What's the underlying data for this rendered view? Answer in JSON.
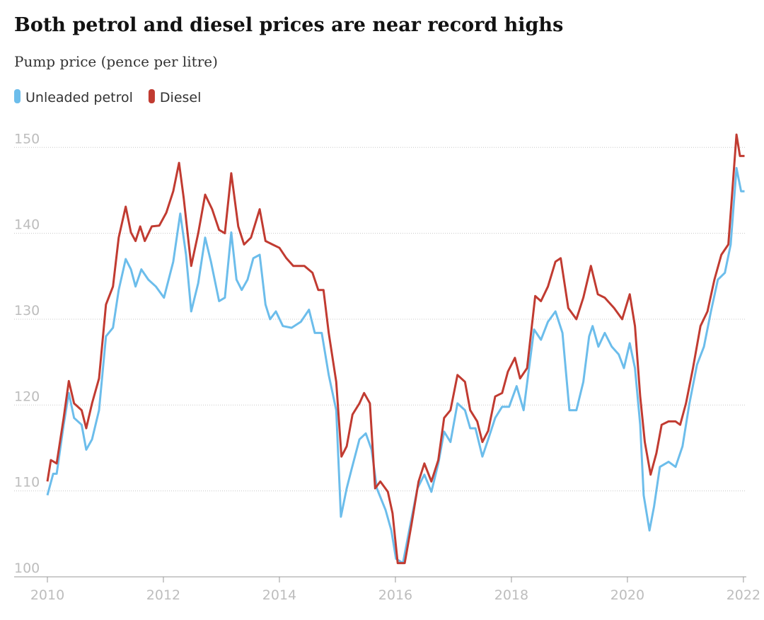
{
  "chart_data": {
    "type": "line",
    "title": "Both petrol and diesel prices are near record highs",
    "subtitle": "Pump price (pence per litre)",
    "xlim": [
      2010,
      2022.05
    ],
    "xticks": [
      2010,
      2012,
      2014,
      2016,
      2018,
      2020,
      2022
    ],
    "ylim": [
      100,
      152
    ],
    "yticks": [
      100,
      110,
      120,
      130,
      140,
      150
    ],
    "grid": true,
    "series": [
      {
        "name": "Unleaded petrol",
        "color": "#6cbdeb",
        "x": [
          2010.0,
          2010.1,
          2010.16,
          2010.28,
          2010.37,
          2010.46,
          2010.59,
          2010.67,
          2010.77,
          2010.89,
          2011.01,
          2011.13,
          2011.23,
          2011.35,
          2011.44,
          2011.52,
          2011.62,
          2011.74,
          2011.87,
          2012.01,
          2012.17,
          2012.29,
          2012.39,
          2012.48,
          2012.6,
          2012.72,
          2012.82,
          2012.96,
          2013.06,
          2013.17,
          2013.26,
          2013.35,
          2013.45,
          2013.55,
          2013.66,
          2013.76,
          2013.84,
          2013.94,
          2014.06,
          2014.21,
          2014.37,
          2014.51,
          2014.61,
          2014.73,
          2014.85,
          2014.98,
          2015.06,
          2015.16,
          2015.24,
          2015.38,
          2015.49,
          2015.59,
          2015.68,
          2015.83,
          2015.93,
          2016.01,
          2016.13,
          2016.26,
          2016.38,
          2016.5,
          2016.62,
          2016.74,
          2016.84,
          2016.95,
          2017.07,
          2017.2,
          2017.29,
          2017.38,
          2017.5,
          2017.6,
          2017.72,
          2017.84,
          2017.96,
          2018.09,
          2018.21,
          2018.39,
          2018.51,
          2018.63,
          2018.76,
          2018.88,
          2019.0,
          2019.12,
          2019.24,
          2019.34,
          2019.4,
          2019.5,
          2019.61,
          2019.73,
          2019.85,
          2019.94,
          2020.04,
          2020.13,
          2020.22,
          2020.28,
          2020.38,
          2020.46,
          2020.56,
          2020.71,
          2020.83,
          2020.95,
          2021.07,
          2021.2,
          2021.32,
          2021.44,
          2021.56,
          2021.68,
          2021.78,
          2021.88,
          2021.96,
          2022.02
        ],
        "values": [
          109.5,
          112,
          112,
          117.7,
          121.4,
          118.5,
          117.7,
          114.8,
          116,
          119.4,
          128,
          129,
          133.4,
          137,
          135.8,
          133.8,
          135.8,
          134.6,
          133.8,
          132.5,
          136.7,
          142.3,
          137.5,
          130.9,
          134.2,
          139.5,
          136.7,
          132.1,
          132.5,
          140.1,
          134.6,
          133.4,
          134.6,
          137.1,
          137.5,
          131.7,
          130,
          130.9,
          129.2,
          129,
          129.7,
          131.1,
          128.4,
          128.4,
          123.5,
          119.4,
          107,
          110.3,
          112.4,
          116,
          116.7,
          114.8,
          110.3,
          107.8,
          105.4,
          102.1,
          101.6,
          106.2,
          110.3,
          111.9,
          109.9,
          113.2,
          116.9,
          115.7,
          120.2,
          119.4,
          117.3,
          117.3,
          114,
          116,
          118.5,
          119.8,
          119.8,
          122.2,
          119.4,
          128.8,
          127.6,
          129.7,
          130.9,
          128.4,
          119.4,
          119.4,
          122.7,
          128,
          129.2,
          126.8,
          128.4,
          126.8,
          125.9,
          124.3,
          127.2,
          124.3,
          117.7,
          109.5,
          105.4,
          108.2,
          112.8,
          113.4,
          112.8,
          115.2,
          120.2,
          124.7,
          126.8,
          130.9,
          134.6,
          135.4,
          138.7,
          147.6,
          144.9,
          144.9
        ]
      },
      {
        "name": "Diesel",
        "color": "#c13b31",
        "x": [
          2010.0,
          2010.06,
          2010.16,
          2010.28,
          2010.37,
          2010.46,
          2010.59,
          2010.67,
          2010.77,
          2010.89,
          2011.01,
          2011.13,
          2011.23,
          2011.35,
          2011.44,
          2011.52,
          2011.6,
          2011.68,
          2011.8,
          2011.93,
          2012.05,
          2012.17,
          2012.27,
          2012.35,
          2012.48,
          2012.6,
          2012.72,
          2012.84,
          2012.96,
          2013.06,
          2013.17,
          2013.29,
          2013.39,
          2013.51,
          2013.66,
          2013.76,
          2013.88,
          2014.0,
          2014.12,
          2014.24,
          2014.43,
          2014.57,
          2014.67,
          2014.76,
          2014.85,
          2014.98,
          2015.07,
          2015.16,
          2015.26,
          2015.38,
          2015.46,
          2015.56,
          2015.65,
          2015.74,
          2015.87,
          2015.95,
          2016.04,
          2016.16,
          2016.28,
          2016.4,
          2016.5,
          2016.62,
          2016.74,
          2016.84,
          2016.95,
          2017.07,
          2017.2,
          2017.29,
          2017.41,
          2017.5,
          2017.6,
          2017.72,
          2017.84,
          2017.94,
          2018.06,
          2018.15,
          2018.27,
          2018.41,
          2018.51,
          2018.63,
          2018.76,
          2018.85,
          2018.98,
          2019.12,
          2019.24,
          2019.37,
          2019.49,
          2019.61,
          2019.77,
          2019.91,
          2020.04,
          2020.13,
          2020.22,
          2020.3,
          2020.4,
          2020.5,
          2020.59,
          2020.71,
          2020.83,
          2020.91,
          2021.01,
          2021.13,
          2021.26,
          2021.38,
          2021.5,
          2021.62,
          2021.74,
          2021.8,
          2021.88,
          2021.94,
          2022.02
        ],
        "values": [
          111.1,
          113.6,
          113.2,
          118.5,
          122.8,
          120.2,
          119.4,
          117.3,
          120.2,
          123.1,
          131.7,
          133.8,
          139.5,
          143.1,
          140.1,
          139.1,
          140.8,
          139.1,
          140.8,
          140.9,
          142.4,
          144.9,
          148.2,
          144.1,
          136.2,
          140,
          144.5,
          142.8,
          140.4,
          140,
          147,
          140.8,
          138.7,
          139.5,
          142.8,
          139.1,
          138.7,
          138.3,
          137.1,
          136.2,
          136.2,
          135.4,
          133.4,
          133.4,
          128.4,
          122.7,
          114,
          115.2,
          118.9,
          120.2,
          121.4,
          120.2,
          110.3,
          111.1,
          109.9,
          107.4,
          101.6,
          101.6,
          106.2,
          111.1,
          113.2,
          111.1,
          113.6,
          118.5,
          119.4,
          123.5,
          122.7,
          119.4,
          118.1,
          115.7,
          117,
          121,
          121.4,
          123.9,
          125.5,
          123.1,
          124.3,
          132.7,
          132.1,
          133.8,
          136.7,
          137.1,
          131.3,
          130,
          132.5,
          136.2,
          132.9,
          132.5,
          131.3,
          130,
          132.9,
          129.2,
          121,
          115.7,
          111.9,
          114.4,
          117.7,
          118.1,
          118.1,
          117.7,
          120.2,
          124.3,
          129.2,
          130.9,
          134.6,
          137.5,
          138.7,
          144.1,
          151.5,
          149,
          149
        ]
      }
    ]
  }
}
